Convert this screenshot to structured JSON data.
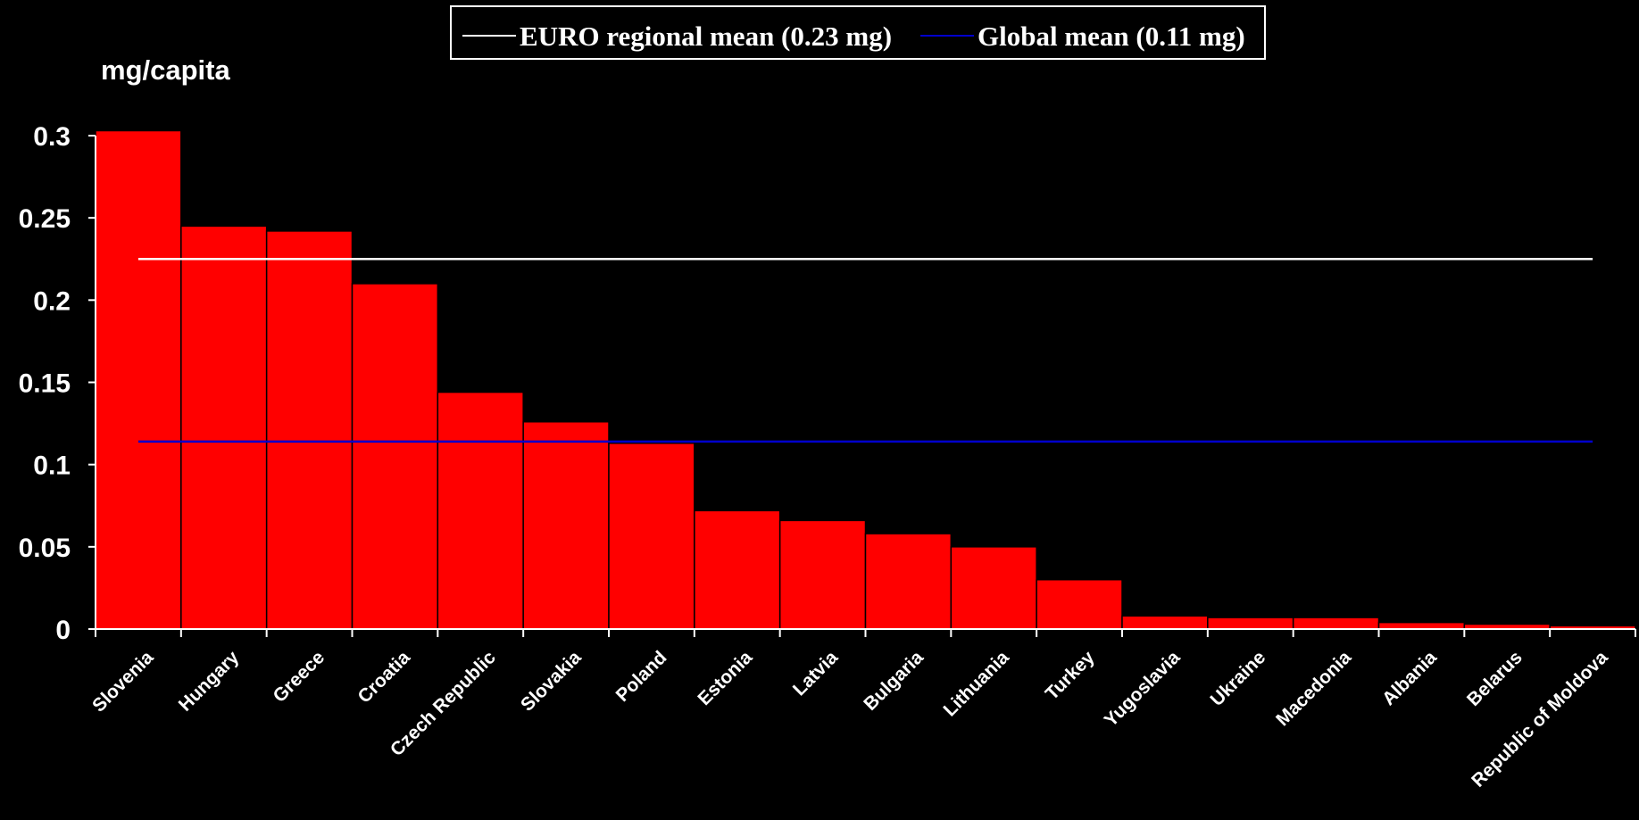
{
  "chart_data": {
    "type": "bar",
    "ylabel": "mg/capita",
    "ylim": [
      0,
      0.3
    ],
    "yticks": [
      0,
      0.05,
      0.1,
      0.15,
      0.2,
      0.25,
      0.3
    ],
    "ytick_labels": [
      "0",
      "0.05",
      "0.1",
      "0.15",
      "0.2",
      "0.25",
      "0.3"
    ],
    "categories": [
      "Slovenia",
      "Hungary",
      "Greece",
      "Croatia",
      "Czech Republic",
      "Slovakia",
      "Poland",
      "Estonia",
      "Latvia",
      "Bulgaria",
      "Lithuania",
      "Turkey",
      "Yugoslavia",
      "Ukraine",
      "Macedonia",
      "Albania",
      "Belarus",
      "Republic of Moldova"
    ],
    "values": [
      0.303,
      0.245,
      0.242,
      0.21,
      0.144,
      0.126,
      0.113,
      0.072,
      0.066,
      0.058,
      0.05,
      0.03,
      0.008,
      0.007,
      0.007,
      0.004,
      0.003,
      0.002
    ],
    "bar_color": "#ff0000",
    "reference_lines": [
      {
        "label": "EURO regional mean (0.23 mg)",
        "value": 0.225,
        "color": "#ffffff"
      },
      {
        "label": "Global mean (0.11 mg)",
        "value": 0.114,
        "color": "#0000cc"
      }
    ],
    "legend_position": "top-center",
    "grid": false
  }
}
